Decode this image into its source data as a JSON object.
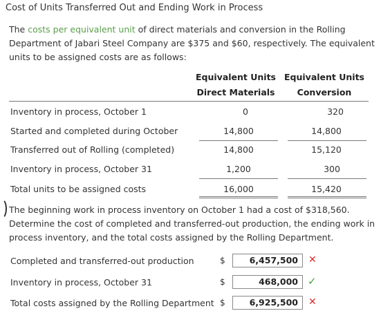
{
  "title": "Cost of Units Transferred Out and Ending Work in Process",
  "intro": {
    "highlight": "costs per equivalent unit",
    "prefix": "The ",
    "text1": " of direct materials and conversion in the Rolling Department of Jabari Steel Company are $375 and $60, respectively. The equivalent units to be assigned costs are as follows:"
  },
  "table": {
    "columns": [
      {
        "line1": "Equivalent Units",
        "line2": "Direct Materials"
      },
      {
        "line1": "Equivalent Units",
        "line2": "Conversion"
      }
    ],
    "rows": [
      {
        "label": "Inventory in process, October 1",
        "dm": "0",
        "conv": "320"
      },
      {
        "label": "Started and completed during October",
        "dm": "14,800",
        "conv": "14,800"
      },
      {
        "label": "Transferred out of Rolling (completed)",
        "dm": "14,800",
        "conv": "15,120"
      },
      {
        "label": "Inventory in process, October 31",
        "dm": "1,200",
        "conv": "300"
      },
      {
        "label": "Total units to be assigned costs",
        "dm": "16,000",
        "conv": "15,420"
      }
    ]
  },
  "paragraph2": "The beginning work in process inventory on October 1 had a cost of $318,560. Determine the cost of completed and transferred-out production, the ending work in process inventory, and the total costs assigned by the Rolling Department.",
  "answers": [
    {
      "label": "Completed and transferred-out production",
      "currency": "$",
      "value": "6,457,500",
      "status": "incorrect",
      "mark": "✕"
    },
    {
      "label": "Inventory in process, October 31",
      "currency": "$",
      "value": "468,000",
      "status": "correct",
      "mark": "✓"
    },
    {
      "label": "Total costs assigned by the Rolling Department",
      "currency": "$",
      "value": "6,925,500",
      "status": "incorrect",
      "mark": "✕"
    }
  ]
}
